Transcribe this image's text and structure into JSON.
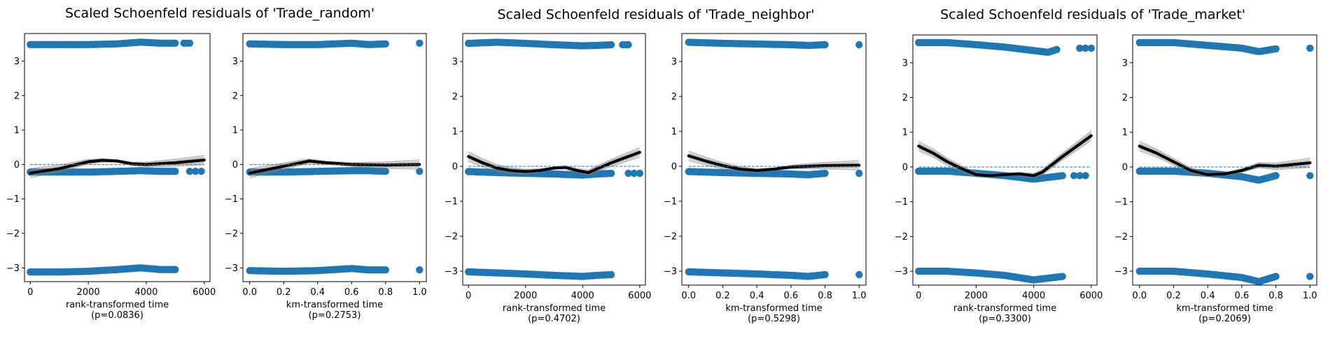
{
  "figure": {
    "titles": [
      "Scaled Schoenfeld residuals of 'Trade_random'",
      "Scaled Schoenfeld residuals of 'Trade_neighbor'",
      "Scaled Schoenfeld residuals of 'Trade_market'"
    ]
  },
  "colors": {
    "points": "#1f77b4",
    "smooth_main": "#000000",
    "smooth_bootstrap": "#808080",
    "zero_line": "#1f77b4"
  },
  "chart_data": [
    {
      "type": "scatter",
      "variable": "Trade_random",
      "xlabel": "rank-transformed time",
      "pvalue": "(p=0.0836)",
      "xlim": [
        -200,
        6200
      ],
      "ylim": [
        -3.4,
        3.8
      ],
      "xticks": [
        0,
        2000,
        4000,
        6000
      ],
      "xtick_labels": [
        "0",
        "2000",
        "4000",
        "6000"
      ],
      "yticks": [
        -3,
        -2,
        -1,
        0,
        1,
        2,
        3
      ],
      "ytick_labels": [
        "−3",
        "−2",
        "−1",
        "0",
        "1",
        "2",
        "3"
      ],
      "clusters": [
        {
          "x": [
            0,
            1000,
            2000,
            3000,
            3800,
            4500,
            5000
          ],
          "y": [
            3.48,
            3.48,
            3.48,
            3.5,
            3.55,
            3.52,
            3.52
          ],
          "trailing_points": [
            [
              5300,
              3.52
            ],
            [
              5400,
              3.52
            ],
            [
              5500,
              3.52
            ]
          ]
        },
        {
          "x": [
            0,
            1000,
            2000,
            3000,
            3800,
            4500,
            5000
          ],
          "y": [
            -0.22,
            -0.22,
            -0.22,
            -0.2,
            -0.18,
            -0.2,
            -0.2
          ],
          "trailing_points": [
            [
              5500,
              -0.2
            ],
            [
              5700,
              -0.2
            ],
            [
              5900,
              -0.2
            ]
          ]
        },
        {
          "x": [
            0,
            1000,
            2000,
            3000,
            3800,
            4500,
            5000
          ],
          "y": [
            -3.12,
            -3.12,
            -3.1,
            -3.05,
            -3.0,
            -3.05,
            -3.05
          ],
          "trailing_points": []
        }
      ],
      "smooth": {
        "x": [
          0,
          1000,
          2000,
          2500,
          3000,
          3500,
          4000,
          5000,
          6000
        ],
        "y": [
          -0.25,
          -0.12,
          0.08,
          0.12,
          0.1,
          0.02,
          0.0,
          0.05,
          0.13
        ]
      },
      "zero_line_x": [
        0,
        6000
      ]
    },
    {
      "type": "scatter",
      "variable": "Trade_random",
      "xlabel": "km-transformed time",
      "pvalue": "(p=0.2753)",
      "xlim": [
        -0.04,
        1.04
      ],
      "ylim": [
        -3.4,
        3.8
      ],
      "xticks": [
        0.0,
        0.2,
        0.4,
        0.6,
        0.8,
        1.0
      ],
      "xtick_labels": [
        "0.0",
        "0.2",
        "0.4",
        "0.6",
        "0.8",
        "1.0"
      ],
      "yticks": [
        -3,
        -2,
        -1,
        0,
        1,
        2,
        3
      ],
      "ytick_labels": [
        "−3",
        "−2",
        "−1",
        "0",
        "1",
        "2",
        "3"
      ],
      "clusters": [
        {
          "x": [
            0.0,
            0.2,
            0.4,
            0.6,
            0.7,
            0.8
          ],
          "y": [
            3.5,
            3.48,
            3.48,
            3.52,
            3.48,
            3.5
          ],
          "trailing_points": [
            [
              1.0,
              3.52
            ]
          ]
        },
        {
          "x": [
            0.0,
            0.2,
            0.4,
            0.6,
            0.7,
            0.8
          ],
          "y": [
            -0.22,
            -0.22,
            -0.2,
            -0.18,
            -0.18,
            -0.2
          ],
          "trailing_points": [
            [
              1.0,
              -0.2
            ]
          ]
        },
        {
          "x": [
            0.0,
            0.2,
            0.4,
            0.6,
            0.7,
            0.8
          ],
          "y": [
            -3.08,
            -3.1,
            -3.08,
            -3.02,
            -3.06,
            -3.06
          ],
          "trailing_points": [
            [
              1.0,
              -3.06
            ]
          ]
        }
      ],
      "smooth": {
        "x": [
          0.0,
          0.15,
          0.3,
          0.35,
          0.45,
          0.6,
          0.8,
          1.0
        ],
        "y": [
          -0.25,
          -0.1,
          0.05,
          0.1,
          0.05,
          0.0,
          -0.02,
          0.0
        ]
      },
      "zero_line_x": [
        0.0,
        1.0
      ]
    },
    {
      "type": "scatter",
      "variable": "Trade_neighbor",
      "xlabel": "rank-transformed time",
      "pvalue": "(p=0.4702)",
      "xlim": [
        -200,
        6200
      ],
      "ylim": [
        -3.4,
        3.8
      ],
      "xticks": [
        0,
        2000,
        4000,
        6000
      ],
      "xtick_labels": [
        "0",
        "2000",
        "4000",
        "6000"
      ],
      "yticks": [
        -3,
        -2,
        -1,
        0,
        1,
        2,
        3
      ],
      "ytick_labels": [
        "−3",
        "−2",
        "−1",
        "0",
        "1",
        "2",
        "3"
      ],
      "clusters": [
        {
          "x": [
            0,
            1000,
            2000,
            3000,
            4000,
            4500,
            5000
          ],
          "y": [
            3.52,
            3.55,
            3.52,
            3.48,
            3.45,
            3.46,
            3.48
          ],
          "trailing_points": [
            [
              5400,
              3.48
            ],
            [
              5500,
              3.48
            ],
            [
              5600,
              3.48
            ]
          ]
        },
        {
          "x": [
            0,
            1000,
            2000,
            3000,
            4000,
            4500,
            5000
          ],
          "y": [
            -0.15,
            -0.18,
            -0.2,
            -0.22,
            -0.25,
            -0.22,
            -0.2
          ],
          "trailing_points": [
            [
              5600,
              -0.2
            ],
            [
              5800,
              -0.2
            ],
            [
              6000,
              -0.2
            ]
          ]
        },
        {
          "x": [
            0,
            1000,
            2000,
            3000,
            4000,
            4500,
            5000
          ],
          "y": [
            -3.02,
            -3.05,
            -3.08,
            -3.12,
            -3.15,
            -3.12,
            -3.1
          ],
          "trailing_points": []
        }
      ],
      "smooth": {
        "x": [
          0,
          500,
          1000,
          1500,
          2000,
          2500,
          3000,
          3400,
          3800,
          4200,
          5000,
          6000
        ],
        "y": [
          0.28,
          0.1,
          -0.05,
          -0.12,
          -0.15,
          -0.12,
          -0.05,
          -0.03,
          -0.12,
          -0.18,
          0.1,
          0.4
        ]
      },
      "zero_line_x": [
        0,
        6000
      ]
    },
    {
      "type": "scatter",
      "variable": "Trade_neighbor",
      "xlabel": "km-transformed time",
      "pvalue": "(p=0.5298)",
      "xlim": [
        -0.04,
        1.04
      ],
      "ylim": [
        -3.4,
        3.8
      ],
      "xticks": [
        0.0,
        0.2,
        0.4,
        0.6,
        0.8,
        1.0
      ],
      "xtick_labels": [
        "0.0",
        "0.2",
        "0.4",
        "0.6",
        "0.8",
        "1.0"
      ],
      "yticks": [
        -3,
        -2,
        -1,
        0,
        1,
        2,
        3
      ],
      "ytick_labels": [
        "−3",
        "−2",
        "−1",
        "0",
        "1",
        "2",
        "3"
      ],
      "clusters": [
        {
          "x": [
            0.0,
            0.2,
            0.4,
            0.6,
            0.7,
            0.8
          ],
          "y": [
            3.55,
            3.52,
            3.5,
            3.48,
            3.46,
            3.48
          ],
          "trailing_points": [
            [
              1.0,
              3.48
            ]
          ]
        },
        {
          "x": [
            0.0,
            0.2,
            0.4,
            0.6,
            0.7,
            0.8
          ],
          "y": [
            -0.15,
            -0.18,
            -0.2,
            -0.22,
            -0.24,
            -0.2
          ],
          "trailing_points": [
            [
              1.0,
              -0.2
            ]
          ]
        },
        {
          "x": [
            0.0,
            0.2,
            0.4,
            0.6,
            0.7,
            0.8
          ],
          "y": [
            -3.02,
            -3.05,
            -3.08,
            -3.12,
            -3.15,
            -3.1
          ],
          "trailing_points": [
            [
              1.0,
              -3.1
            ]
          ]
        }
      ],
      "smooth": {
        "x": [
          0.0,
          0.1,
          0.2,
          0.3,
          0.4,
          0.5,
          0.6,
          0.7,
          0.8,
          1.0
        ],
        "y": [
          0.3,
          0.15,
          0.02,
          -0.08,
          -0.12,
          -0.08,
          -0.02,
          0.0,
          0.02,
          0.03
        ]
      },
      "zero_line_x": [
        0.0,
        1.0
      ]
    },
    {
      "type": "scatter",
      "variable": "Trade_market",
      "xlabel": "rank-transformed time",
      "pvalue": "(p=0.3300)",
      "xlim": [
        -200,
        6200
      ],
      "ylim": [
        -3.4,
        3.8
      ],
      "xticks": [
        0,
        2000,
        4000,
        6000
      ],
      "xtick_labels": [
        "0",
        "2000",
        "4000",
        "6000"
      ],
      "yticks": [
        -3,
        -2,
        -1,
        0,
        1,
        2,
        3
      ],
      "ytick_labels": [
        "−3",
        "−2",
        "−1",
        "0",
        "1",
        "2",
        "3"
      ],
      "clusters": [
        {
          "x": [
            0,
            1000,
            2000,
            3000,
            4000,
            4500,
            4800
          ],
          "y": [
            3.58,
            3.58,
            3.52,
            3.45,
            3.35,
            3.3,
            3.38
          ],
          "trailing_points": [
            [
              5600,
              3.42
            ],
            [
              5800,
              3.42
            ],
            [
              6000,
              3.42
            ]
          ]
        },
        {
          "x": [
            0,
            1000,
            2000,
            3000,
            4000,
            4500,
            5000
          ],
          "y": [
            -0.12,
            -0.12,
            -0.18,
            -0.25,
            -0.35,
            -0.3,
            -0.25
          ],
          "trailing_points": [
            [
              5400,
              -0.25
            ],
            [
              5600,
              -0.25
            ],
            [
              5800,
              -0.25
            ]
          ]
        },
        {
          "x": [
            0,
            1000,
            2000,
            3000,
            4000,
            4500,
            5000
          ],
          "y": [
            -3.0,
            -3.0,
            -3.05,
            -3.12,
            -3.25,
            -3.2,
            -3.15
          ],
          "trailing_points": []
        }
      ],
      "smooth": {
        "x": [
          0,
          500,
          1000,
          1500,
          2000,
          2500,
          3000,
          3500,
          4000,
          4300,
          5000,
          6000
        ],
        "y": [
          0.6,
          0.4,
          0.15,
          -0.05,
          -0.22,
          -0.25,
          -0.22,
          -0.2,
          -0.25,
          -0.15,
          0.3,
          0.9
        ]
      },
      "zero_line_x": [
        0,
        6000
      ]
    },
    {
      "type": "scatter",
      "variable": "Trade_market",
      "xlabel": "km-transformed time",
      "pvalue": "(p=0.2069)",
      "xlim": [
        -0.04,
        1.04
      ],
      "ylim": [
        -3.4,
        3.8
      ],
      "xticks": [
        0.0,
        0.2,
        0.4,
        0.6,
        0.8,
        1.0
      ],
      "xtick_labels": [
        "0.0",
        "0.2",
        "0.4",
        "0.6",
        "0.8",
        "1.0"
      ],
      "yticks": [
        -3,
        -2,
        -1,
        0,
        1,
        2,
        3
      ],
      "ytick_labels": [
        "−3",
        "−2",
        "−1",
        "0",
        "1",
        "2",
        "3"
      ],
      "clusters": [
        {
          "x": [
            0.0,
            0.2,
            0.4,
            0.6,
            0.7,
            0.8
          ],
          "y": [
            3.58,
            3.58,
            3.5,
            3.42,
            3.32,
            3.4
          ],
          "trailing_points": [
            [
              1.0,
              3.42
            ]
          ]
        },
        {
          "x": [
            0.0,
            0.2,
            0.4,
            0.6,
            0.7,
            0.8
          ],
          "y": [
            -0.12,
            -0.12,
            -0.18,
            -0.28,
            -0.38,
            -0.25
          ],
          "trailing_points": [
            [
              1.0,
              -0.25
            ]
          ]
        },
        {
          "x": [
            0.0,
            0.2,
            0.4,
            0.6,
            0.7,
            0.8
          ],
          "y": [
            -3.0,
            -3.0,
            -3.08,
            -3.18,
            -3.3,
            -3.15
          ],
          "trailing_points": [
            [
              1.0,
              -3.15
            ]
          ]
        }
      ],
      "smooth": {
        "x": [
          0.0,
          0.1,
          0.2,
          0.3,
          0.4,
          0.5,
          0.6,
          0.7,
          0.8,
          1.0
        ],
        "y": [
          0.6,
          0.4,
          0.15,
          -0.1,
          -0.22,
          -0.2,
          -0.1,
          0.05,
          0.02,
          0.12
        ]
      },
      "zero_line_x": [
        0.0,
        1.0
      ]
    }
  ]
}
